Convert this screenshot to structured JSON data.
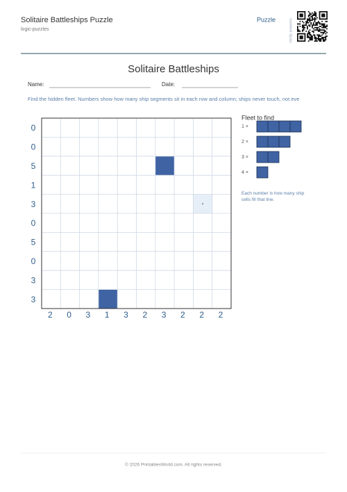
{
  "header": {
    "title": "Solitaire Battleships Puzzle",
    "subtitle": "logic-puzzles",
    "tag": "Puzzle",
    "qr_caption": "Verify answers"
  },
  "worksheet": {
    "title": "Solitaire Battleships",
    "name_label": "Name:",
    "date_label": "Date:",
    "instructions": "Find the hidden fleet. Numbers show how many ship segments sit in each row and column; ships never touch, not eve"
  },
  "puzzle": {
    "row_clues": [
      0,
      0,
      5,
      1,
      3,
      0,
      5,
      0,
      3,
      3
    ],
    "col_clues": [
      2,
      0,
      3,
      1,
      3,
      2,
      3,
      2,
      2,
      2
    ],
    "hints": [
      {
        "row": 2,
        "col": 6,
        "type": "ship"
      },
      {
        "row": 9,
        "col": 3,
        "type": "ship"
      },
      {
        "row": 4,
        "col": 8,
        "type": "water"
      }
    ]
  },
  "fleet": {
    "title": "Fleet to find",
    "ships": [
      {
        "label": "1 ×",
        "length": 4
      },
      {
        "label": "2 ×",
        "length": 3
      },
      {
        "label": "3 ×",
        "length": 2
      },
      {
        "label": "4 ×",
        "length": 1
      }
    ],
    "note": "Each number is how many ship cells fill that line."
  },
  "footer": {
    "copyright": "© 2026 PrintablesWorld.com. All rights reserved."
  }
}
